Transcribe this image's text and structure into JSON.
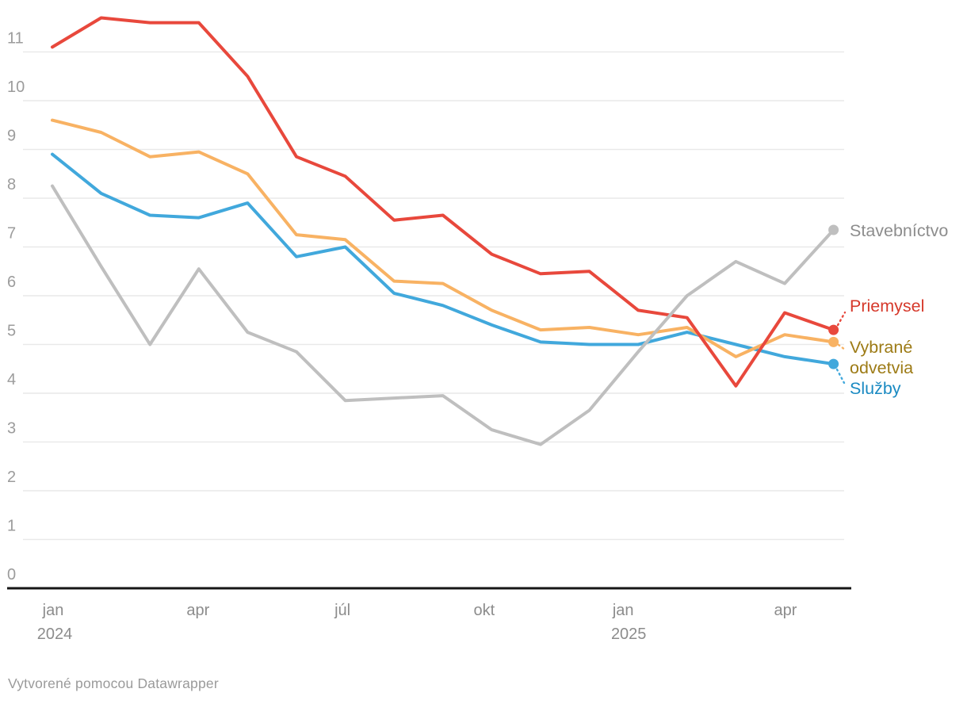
{
  "chart_data": {
    "type": "line",
    "title": "",
    "x": [
      "2024-01",
      "2024-02",
      "2024-03",
      "2024-04",
      "2024-05",
      "2024-06",
      "2024-07",
      "2024-08",
      "2024-09",
      "2024-10",
      "2024-11",
      "2024-12",
      "2025-01",
      "2025-02",
      "2025-03",
      "2025-04",
      "2025-05"
    ],
    "series": [
      {
        "name": "Stavebníctvo",
        "slug": "stavebnictvo",
        "color": "#bfbfbf",
        "label_color": "#8d8d8d",
        "label_lines": [
          "Stavebníctvo"
        ],
        "values": [
          8.25,
          6.6,
          5.0,
          6.55,
          5.25,
          4.85,
          3.85,
          3.9,
          3.95,
          3.25,
          2.95,
          3.65,
          4.85,
          6.0,
          6.7,
          6.25,
          7.35
        ]
      },
      {
        "name": "Priemysel",
        "slug": "priemysel",
        "color": "#e8483c",
        "label_color": "#d6392b",
        "label_lines": [
          "Priemysel"
        ],
        "values": [
          11.1,
          11.7,
          11.6,
          11.6,
          10.5,
          8.85,
          8.45,
          7.55,
          7.65,
          6.85,
          6.45,
          6.5,
          5.7,
          5.55,
          4.15,
          5.65,
          5.3
        ]
      },
      {
        "name": "Vybrané odvetvia",
        "slug": "vybrane-odvetvia",
        "color": "#f8b263",
        "label_color": "#9d7b16",
        "label_lines": [
          "Vybrané",
          "odvetvia"
        ],
        "values": [
          9.6,
          9.35,
          8.85,
          8.95,
          8.5,
          7.25,
          7.15,
          6.3,
          6.25,
          5.7,
          5.3,
          5.35,
          5.2,
          5.35,
          4.75,
          5.2,
          5.05
        ]
      },
      {
        "name": "Služby",
        "slug": "sluzby",
        "color": "#41a8dc",
        "label_color": "#1a8ac2",
        "label_lines": [
          "Služby"
        ],
        "values": [
          8.9,
          8.1,
          7.65,
          7.6,
          7.9,
          6.8,
          7.0,
          6.05,
          5.8,
          5.4,
          5.05,
          5.0,
          5.0,
          5.25,
          5.0,
          4.75,
          4.6
        ]
      }
    ],
    "yticks": [
      0,
      1,
      2,
      3,
      4,
      5,
      6,
      7,
      8,
      9,
      10,
      11
    ],
    "ylim": [
      0,
      12
    ],
    "grid": "horizontal",
    "legend": "direct-labels-right",
    "x_ticks": [
      {
        "index": 0,
        "label": "jan",
        "sublabel": "2024"
      },
      {
        "index": 3,
        "label": "apr"
      },
      {
        "index": 6,
        "label": "júl"
      },
      {
        "index": 9,
        "label": "okt"
      },
      {
        "index": 12,
        "label": "jan",
        "sublabel": "2025"
      },
      {
        "index": 15,
        "label": "apr"
      }
    ]
  },
  "footer": {
    "attribution": "Vytvorené pomocou Datawrapper"
  },
  "colors": {
    "background": "#ffffff",
    "gridline": "#e9e9e9",
    "axis": "#161616",
    "tick_label": "#9c9c9c",
    "month_label": "#8c8c8c",
    "attribution": "#9a9a9a"
  }
}
